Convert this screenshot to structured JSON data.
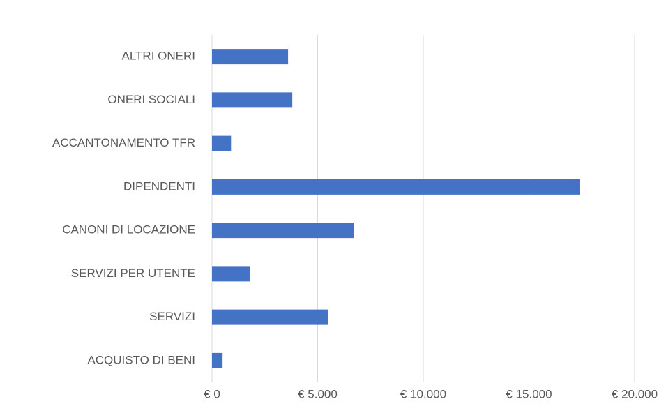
{
  "chart_data": {
    "type": "bar",
    "orientation": "horizontal",
    "categories": [
      "ALTRI ONERI",
      "ONERI SOCIALI",
      "ACCANTONAMENTO TFR",
      "DIPENDENTI",
      "CANONI DI LOCAZIONE",
      "SERVIZI PER UTENTE",
      "SERVIZI",
      "ACQUISTO DI BENI"
    ],
    "values": [
      3600,
      3800,
      900,
      17400,
      6700,
      1800,
      5500,
      500
    ],
    "color": "#4472c4",
    "xlim": [
      0,
      20000
    ],
    "xticks": [
      {
        "value": 0,
        "label": "€ 0"
      },
      {
        "value": 5000,
        "label": "€ 5.000"
      },
      {
        "value": 10000,
        "label": "€ 10.000"
      },
      {
        "value": 15000,
        "label": "€ 15.000"
      },
      {
        "value": 20000,
        "label": "€ 20.000"
      }
    ],
    "grid": true
  }
}
